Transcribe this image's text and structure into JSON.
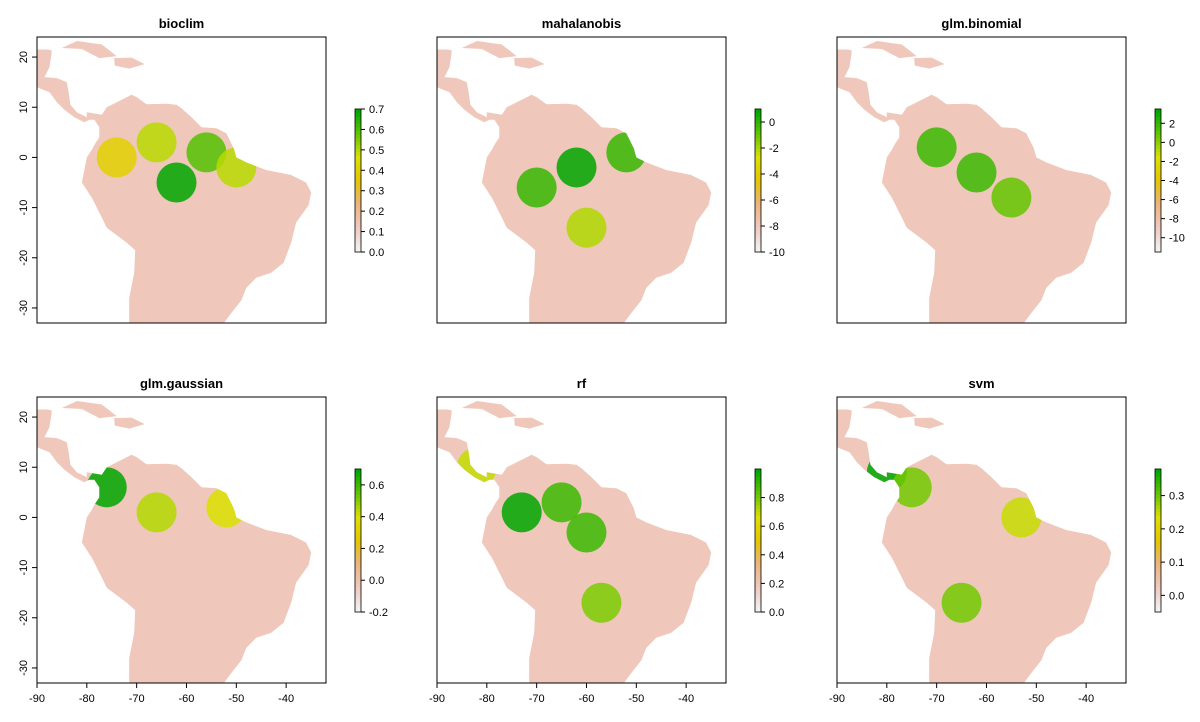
{
  "chart_data": [
    {
      "type": "heatmap",
      "title": "bioclim",
      "xlim": [
        -90,
        -32
      ],
      "ylim": [
        -33,
        24
      ],
      "x_ticks": [],
      "y_ticks": [
        "-30",
        "-20",
        "-10",
        "0",
        "10",
        "20"
      ],
      "legend": {
        "range": [
          0.0,
          0.7
        ],
        "ticks": [
          "0.0",
          "0.1",
          "0.2",
          "0.3",
          "0.4",
          "0.5",
          "0.6",
          "0.7"
        ]
      },
      "hotspots": [
        {
          "lon": -62,
          "lat": -5,
          "value": 0.7
        },
        {
          "lon": -56,
          "lat": 1,
          "value": 0.6
        },
        {
          "lon": -66,
          "lat": 3,
          "value": 0.5
        },
        {
          "lon": -50,
          "lat": -2,
          "value": 0.5
        },
        {
          "lon": -74,
          "lat": 0,
          "value": 0.4
        }
      ]
    },
    {
      "type": "heatmap",
      "title": "mahalanobis",
      "xlim": [
        -90,
        -32
      ],
      "ylim": [
        -33,
        24
      ],
      "x_ticks": [],
      "y_ticks": [],
      "legend": {
        "range": [
          -10,
          1
        ],
        "ticks": [
          "-10",
          "-8",
          "-6",
          "-4",
          "-2",
          "0"
        ]
      },
      "hotspots": [
        {
          "lon": -62,
          "lat": -2,
          "value": 1
        },
        {
          "lon": -70,
          "lat": -6,
          "value": 0
        },
        {
          "lon": -52,
          "lat": 1,
          "value": 0
        },
        {
          "lon": -60,
          "lat": -14,
          "value": -2
        }
      ]
    },
    {
      "type": "heatmap",
      "title": "glm.binomial",
      "xlim": [
        -90,
        -32
      ],
      "ylim": [
        -33,
        24
      ],
      "x_ticks": [],
      "y_ticks": [],
      "legend": {
        "range": [
          -11.5,
          3.5
        ],
        "ticks": [
          "-10",
          "-8",
          "-6",
          "-4",
          "-2",
          "0",
          "2"
        ]
      },
      "hotspots": [
        {
          "lon": -62,
          "lat": -3,
          "value": 2
        },
        {
          "lon": -70,
          "lat": 2,
          "value": 2
        },
        {
          "lon": -55,
          "lat": -8,
          "value": 1
        }
      ]
    },
    {
      "type": "heatmap",
      "title": "glm.gaussian",
      "xlim": [
        -90,
        -32
      ],
      "ylim": [
        -33,
        24
      ],
      "x_ticks": [
        "-90",
        "-80",
        "-70",
        "-60",
        "-50",
        "-40"
      ],
      "y_ticks": [
        "-30",
        "-20",
        "-10",
        "0",
        "10",
        "20"
      ],
      "legend": {
        "range": [
          -0.2,
          0.7
        ],
        "ticks": [
          "-0.2",
          "0.0",
          "0.2",
          "0.4",
          "0.6"
        ]
      },
      "hotspots": [
        {
          "lon": -76,
          "lat": 6,
          "value": 0.7
        },
        {
          "lon": -66,
          "lat": 1,
          "value": 0.45
        },
        {
          "lon": -52,
          "lat": 2,
          "value": 0.4
        }
      ]
    },
    {
      "type": "heatmap",
      "title": "rf",
      "xlim": [
        -90,
        -32
      ],
      "ylim": [
        -33,
        24
      ],
      "x_ticks": [
        "-90",
        "-80",
        "-70",
        "-60",
        "-50",
        "-40"
      ],
      "y_ticks": [],
      "legend": {
        "range": [
          0.0,
          1.0
        ],
        "ticks": [
          "0.0",
          "0.2",
          "0.4",
          "0.6",
          "0.8"
        ]
      },
      "hotspots": [
        {
          "lon": -73,
          "lat": 1,
          "value": 1
        },
        {
          "lon": -65,
          "lat": 3,
          "value": 0.9
        },
        {
          "lon": -60,
          "lat": -3,
          "value": 0.9
        },
        {
          "lon": -57,
          "lat": -17,
          "value": 0.8
        },
        {
          "lon": -82,
          "lat": 10,
          "value": 0.7
        }
      ]
    },
    {
      "type": "heatmap",
      "title": "svm",
      "xlim": [
        -90,
        -32
      ],
      "ylim": [
        -33,
        24
      ],
      "x_ticks": [
        "-90",
        "-80",
        "-70",
        "-60",
        "-50",
        "-40"
      ],
      "y_ticks": [],
      "legend": {
        "range": [
          -0.05,
          0.38
        ],
        "ticks": [
          "0.0",
          "0.1",
          "0.2",
          "0.3"
        ]
      },
      "hotspots": [
        {
          "lon": -80,
          "lat": 9,
          "value": 0.38
        },
        {
          "lon": -75,
          "lat": 6,
          "value": 0.3
        },
        {
          "lon": -65,
          "lat": -17,
          "value": 0.3
        },
        {
          "lon": -53,
          "lat": 0,
          "value": 0.25
        }
      ]
    }
  ],
  "colors": {
    "ramp": [
      "#f2f2f2",
      "#f0c9c0",
      "#ebb57d",
      "#e6c400",
      "#dbe100",
      "#63c600",
      "#00a600"
    ],
    "frame": "#000000"
  }
}
